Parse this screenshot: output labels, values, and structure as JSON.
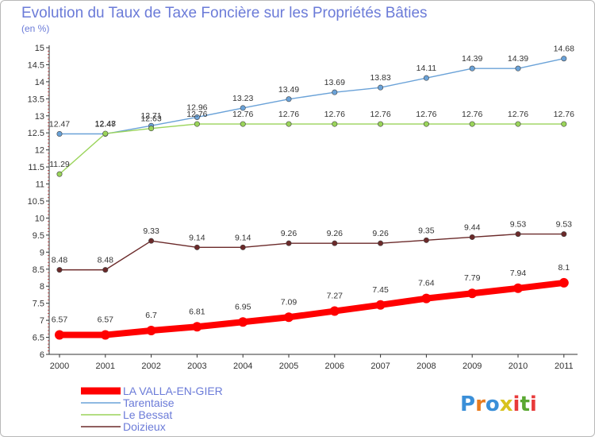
{
  "chart_data": {
    "type": "line",
    "title": "Evolution du Taux de Taxe Foncière sur les Propriétés Bâties",
    "subtitle": "(en %)",
    "x": [
      "2000",
      "2001",
      "2002",
      "2003",
      "2004",
      "2005",
      "2006",
      "2007",
      "2008",
      "2009",
      "2010",
      "2011"
    ],
    "ylim": [
      6,
      15
    ],
    "yticks": [
      "6",
      "6.5",
      "7",
      "7.5",
      "8",
      "8.5",
      "9",
      "9.5",
      "10",
      "10.5",
      "11",
      "11.5",
      "12",
      "12.5",
      "13",
      "13.5",
      "14",
      "14.5",
      "15"
    ],
    "grid": false,
    "legend_position": "bottom-left",
    "series": [
      {
        "name": "LA VALLA-EN-GIER",
        "color": "#ff0000",
        "values": [
          6.57,
          6.57,
          6.7,
          6.81,
          6.95,
          7.09,
          7.27,
          7.45,
          7.64,
          7.79,
          7.94,
          8.1
        ],
        "labels": [
          "6.57",
          "6.57",
          "6.7",
          "6.81",
          "6.95",
          "7.09",
          "7.27",
          "7.45",
          "7.64",
          "7.79",
          "7.94",
          "8.1"
        ]
      },
      {
        "name": "Tarentaise",
        "color": "#6aa2d8",
        "values": [
          12.47,
          12.47,
          12.71,
          12.96,
          13.23,
          13.49,
          13.69,
          13.83,
          14.11,
          14.39,
          14.39,
          14.68
        ],
        "labels": [
          "12.47",
          "12.47",
          "12.71",
          "12.96",
          "13.23",
          "13.49",
          "13.69",
          "13.83",
          "14.11",
          "14.39",
          "14.39",
          "14.68"
        ]
      },
      {
        "name": "Le Bessat",
        "color": "#9ad45a",
        "values": [
          11.29,
          12.48,
          12.63,
          12.76,
          12.76,
          12.76,
          12.76,
          12.76,
          12.76,
          12.76,
          12.76,
          12.76
        ],
        "labels": [
          "11.29",
          "12.48",
          "12.63",
          "12.76",
          "12.76",
          "12.76",
          "12.76",
          "12.76",
          "12.76",
          "12.76",
          "12.76",
          "12.76"
        ]
      },
      {
        "name": "Doizieux",
        "color": "#6b2a2a",
        "values": [
          8.48,
          8.48,
          9.33,
          9.14,
          9.14,
          9.26,
          9.26,
          9.26,
          9.35,
          9.44,
          9.53,
          9.53
        ],
        "labels": [
          "8.48",
          "8.48",
          "9.33",
          "9.14",
          "9.14",
          "9.26",
          "9.26",
          "9.26",
          "9.35",
          "9.44",
          "9.53",
          "9.53"
        ]
      }
    ]
  },
  "logo": {
    "text": "Proxiti",
    "colors": [
      "#3a8fd8",
      "#e87b1e",
      "#3a8fd8",
      "#d8c21e",
      "#e83a3a",
      "#5aa832",
      "#e83a3a"
    ]
  }
}
